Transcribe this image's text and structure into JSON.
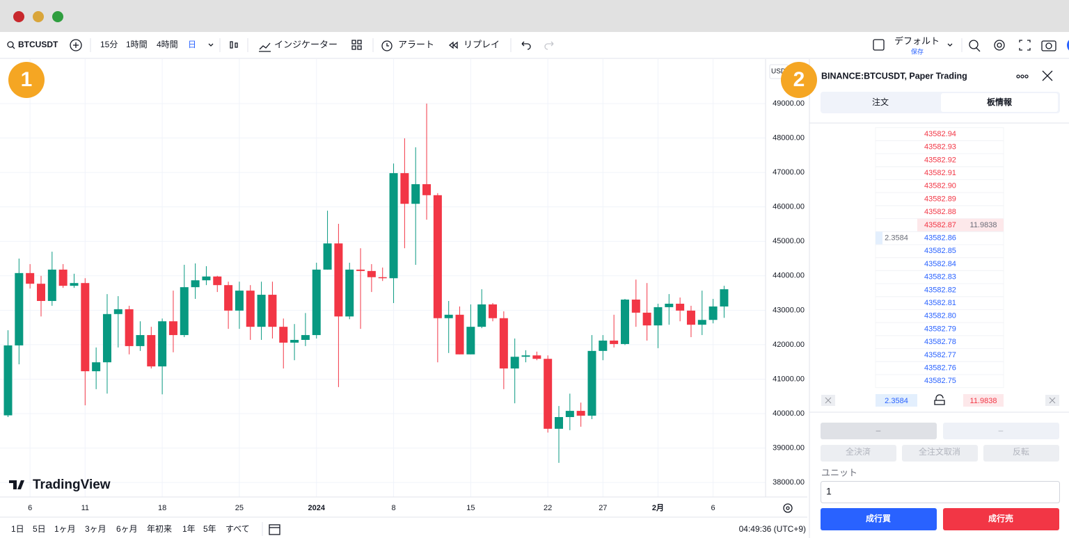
{
  "toolbar": {
    "symbol": "BTCUSDT",
    "intervals": [
      "15分",
      "1時間",
      "4時間",
      "日"
    ],
    "indicators": "インジケーター",
    "alert": "アラート",
    "replay": "リプレイ",
    "layout": "デフォルト",
    "save": "保存"
  },
  "badges": [
    "1",
    "2"
  ],
  "chart_data": {
    "type": "candlestick",
    "currency": "USD",
    "brand": "TradingView",
    "categories": [
      null,
      null,
      "6",
      null,
      null,
      null,
      null,
      "11",
      null,
      null,
      null,
      null,
      null,
      null,
      "18",
      null,
      null,
      null,
      null,
      null,
      null,
      "25",
      null,
      null,
      null,
      null,
      null,
      null,
      "2024",
      null,
      null,
      null,
      null,
      null,
      null,
      "8",
      null,
      null,
      null,
      null,
      null,
      null,
      "15",
      null,
      null,
      null,
      null,
      null,
      null,
      "22",
      null,
      null,
      null,
      null,
      "27",
      null,
      null,
      null,
      null,
      "2月",
      null,
      null,
      null,
      null,
      "6",
      null
    ],
    "open": [
      39950,
      41980,
      44080,
      43770,
      43270,
      44180,
      43710,
      43790,
      41230,
      41490,
      42890,
      43030,
      41960,
      42280,
      41370,
      42680,
      42280,
      43670,
      43870,
      43980,
      43730,
      42990,
      43570,
      42520,
      43450,
      42520,
      42060,
      42140,
      42280,
      44180,
      44940,
      42820,
      44180,
      44140,
      43960,
      43930,
      46980,
      46090,
      46660,
      46340,
      42770,
      42870,
      41720,
      42520,
      43170,
      42770,
      41310,
      41650,
      41690,
      41590,
      39560,
      39900,
      40080,
      39940,
      41820,
      42120,
      42020,
      43310,
      42930,
      42560,
      43090,
      43190,
      42990,
      42580,
      42720,
      43110
    ],
    "high": [
      42420,
      44500,
      44340,
      44000,
      44700,
      44340,
      44060,
      43930,
      41920,
      43470,
      43410,
      43130,
      42680,
      42520,
      42760,
      43570,
      44320,
      44360,
      44280,
      44000,
      43830,
      43830,
      43730,
      43830,
      43830,
      42760,
      42600,
      42920,
      44380,
      45890,
      45510,
      44380,
      44800,
      44340,
      44240,
      47260,
      47990,
      47730,
      49000,
      46400,
      43270,
      43110,
      43170,
      43610,
      43210,
      42970,
      42180,
      41840,
      41800,
      41690,
      40220,
      40580,
      40320,
      42280,
      42280,
      42870,
      43330,
      43890,
      43790,
      43190,
      43470,
      43370,
      43130,
      43570,
      43330,
      43710
    ],
    "low": [
      39900,
      41430,
      43630,
      42820,
      43130,
      43650,
      43650,
      40240,
      40710,
      40580,
      41920,
      41720,
      41820,
      41310,
      40560,
      41780,
      42220,
      43330,
      43730,
      43530,
      42460,
      42460,
      42140,
      42140,
      42180,
      41310,
      41550,
      41960,
      42180,
      44180,
      40770,
      42740,
      42460,
      43530,
      43850,
      43210,
      44800,
      44320,
      45630,
      41490,
      41760,
      41720,
      41720,
      42480,
      42680,
      40710,
      40300,
      41490,
      41550,
      39450,
      38570,
      39520,
      39620,
      39840,
      41550,
      41920,
      41990,
      42520,
      42120,
      41900,
      42580,
      42680,
      42220,
      42280,
      42620,
      42780
    ],
    "close": [
      41980,
      44080,
      43770,
      43270,
      44180,
      43710,
      43790,
      41230,
      41490,
      42890,
      43030,
      41960,
      42280,
      41370,
      42680,
      42280,
      43670,
      43870,
      43980,
      43730,
      42990,
      43570,
      42520,
      43450,
      42520,
      42060,
      42140,
      42280,
      44180,
      44940,
      42820,
      44180,
      44140,
      43960,
      43930,
      46980,
      46090,
      46660,
      46340,
      42770,
      42870,
      41720,
      42520,
      43170,
      42770,
      41310,
      41650,
      41690,
      41590,
      39560,
      39900,
      40080,
      39940,
      41820,
      42120,
      42020,
      43310,
      42930,
      42560,
      43090,
      43190,
      42990,
      42580,
      42720,
      43110,
      43610
    ],
    "up_color": "#089981",
    "down_color": "#f23645",
    "ylim": [
      37580,
      50190
    ],
    "yticks": [
      {
        "value": 38000,
        "label": "38000.00"
      },
      {
        "value": 39000,
        "label": "39000.00"
      },
      {
        "value": 40000,
        "label": "40000.00"
      },
      {
        "value": 41000,
        "label": "41000.00"
      },
      {
        "value": 42000,
        "label": "42000.00"
      },
      {
        "value": 43000,
        "label": "43000.00"
      },
      {
        "value": 44000,
        "label": "44000.00"
      },
      {
        "value": 45000,
        "label": "45000.00"
      },
      {
        "value": 46000,
        "label": "46000.00"
      },
      {
        "value": 47000,
        "label": "47000.00"
      },
      {
        "value": 48000,
        "label": "48000.00"
      },
      {
        "value": 49000,
        "label": "49000.00"
      }
    ],
    "grid": true
  },
  "bottom_bar": {
    "ranges": [
      "1日",
      "5日",
      "1ヶ月",
      "3ヶ月",
      "6ヶ月",
      "年初来",
      "1年",
      "5年",
      "すべて"
    ],
    "time": "04:49:36 (UTC+9)"
  },
  "panel": {
    "title": "BINANCE:BTCUSDT, Paper Trading",
    "tabs": [
      "注文",
      "板情報"
    ],
    "asks": [
      "43582.94",
      "43582.93",
      "43582.92",
      "43582.91",
      "43582.90",
      "43582.89",
      "43582.88",
      "43582.87"
    ],
    "bids": [
      "43582.86",
      "43582.85",
      "43582.84",
      "43582.83",
      "43582.82",
      "43582.81",
      "43582.80",
      "43582.79",
      "43582.78",
      "43582.77",
      "43582.76",
      "43582.75"
    ],
    "ask_size": "11.9838",
    "bid_size": "2.3584",
    "total_bid": "2.3584",
    "total_ask": "11.9838",
    "placeholders": [
      "–",
      "–"
    ],
    "actions": [
      "全決済",
      "全注文取消",
      "反転"
    ],
    "unit_label": "ユニット",
    "unit_value": "1",
    "buy": "成行買",
    "sell": "成行売"
  }
}
